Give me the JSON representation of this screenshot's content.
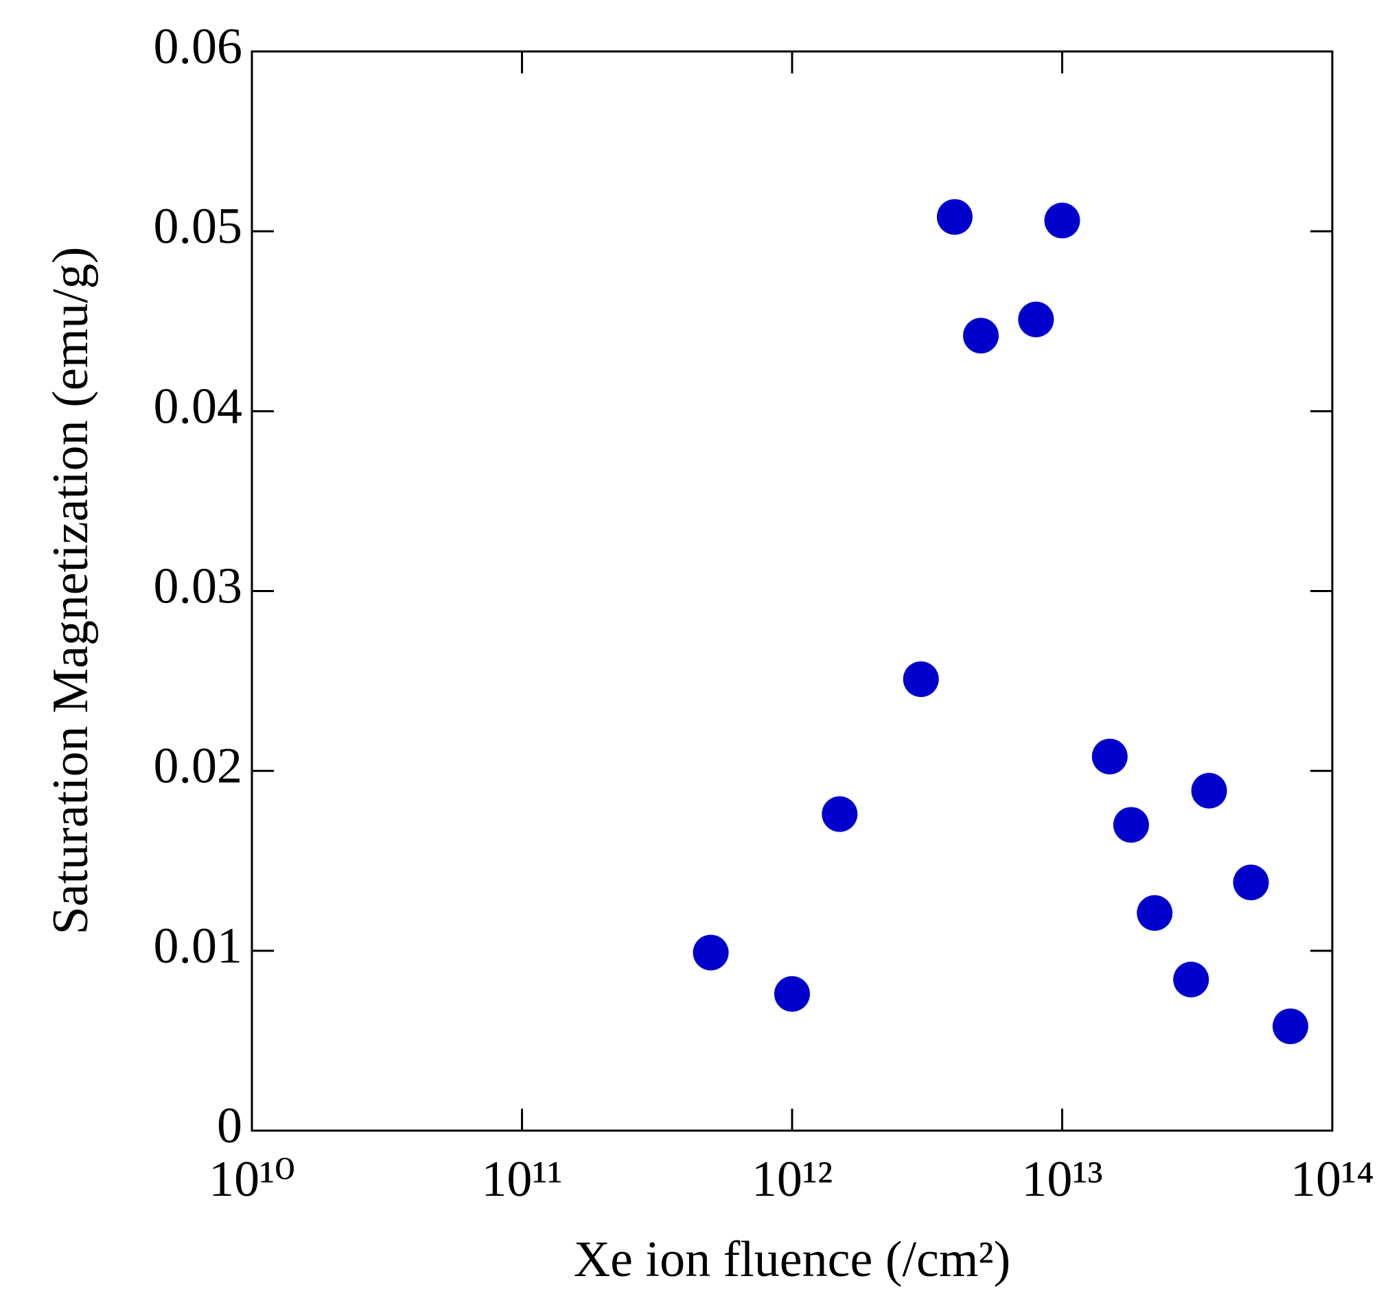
{
  "chart_data": {
    "type": "scatter",
    "x_label": "Xe ion fluence (/cm²)",
    "y_label": "Saturation Magnetization (emu/g)",
    "x": [
      500000000000,
      1000000000000,
      1500000000000,
      3000000000000,
      4000000000000,
      5000000000000,
      8000000000000,
      10000000000000,
      15000000000000,
      18000000000000,
      22000000000000,
      30000000000000,
      35000000000000,
      50000000000000,
      70000000000000
    ],
    "values": [
      0.0099,
      0.0076,
      0.0176,
      0.0251,
      0.0508,
      0.0442,
      0.0451,
      0.0506,
      0.0208,
      0.017,
      0.0121,
      0.0084,
      0.0189,
      0.0138,
      0.0058
    ],
    "color": "#0000cc",
    "x_scale": "log",
    "xlim": [
      10000000000,
      100000000000000
    ],
    "xticks": [
      {
        "value": 10000000000,
        "label": "10¹⁰"
      },
      {
        "value": 100000000000,
        "label": "10¹¹"
      },
      {
        "value": 1000000000000,
        "label": "10¹²"
      },
      {
        "value": 10000000000000,
        "label": "10¹³"
      },
      {
        "value": 100000000000000,
        "label": "10¹⁴"
      }
    ],
    "ylim": [
      0,
      0.06
    ],
    "yticks": [
      0,
      0.01,
      0.02,
      0.03,
      0.04,
      0.05,
      0.06
    ],
    "grid": false
  }
}
